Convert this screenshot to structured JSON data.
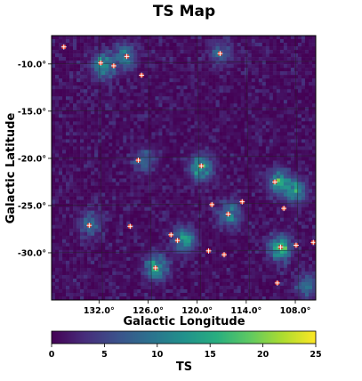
{
  "chart_data": {
    "type": "heatmap",
    "title": "TS Map",
    "xlabel": "Galactic Longitude",
    "ylabel": "Galactic Latitude",
    "x_ticks": [
      "132.0°",
      "126.0°",
      "120.0°",
      "114.0°",
      "108.0°"
    ],
    "x_tick_values": [
      132.0,
      126.0,
      120.0,
      114.0,
      108.0
    ],
    "y_ticks": [
      "-10.0°",
      "-15.0°",
      "-20.0°",
      "-25.0°",
      "-30.0°"
    ],
    "y_tick_values": [
      -10.0,
      -15.0,
      -20.0,
      -25.0,
      -30.0
    ],
    "xlim": [
      137.8,
      105.5
    ],
    "ylim": [
      -35.0,
      -7.0
    ],
    "grid": true,
    "colorbar": {
      "label": "TS",
      "range": [
        0,
        25
      ],
      "ticks": [
        "0",
        "5",
        "10",
        "15",
        "20",
        "25"
      ],
      "tick_values": [
        0,
        5,
        10,
        15,
        20,
        25
      ],
      "colormap": "viridis"
    },
    "sources": [
      {
        "l": 136.3,
        "b": -8.2
      },
      {
        "l": 131.8,
        "b": -9.9
      },
      {
        "l": 130.2,
        "b": -10.2
      },
      {
        "l": 128.6,
        "b": -9.2
      },
      {
        "l": 126.8,
        "b": -11.2
      },
      {
        "l": 117.2,
        "b": -8.9
      },
      {
        "l": 127.2,
        "b": -20.2
      },
      {
        "l": 119.5,
        "b": -20.8
      },
      {
        "l": 110.5,
        "b": -22.5
      },
      {
        "l": 118.2,
        "b": -24.9
      },
      {
        "l": 116.2,
        "b": -25.9
      },
      {
        "l": 114.5,
        "b": -24.6
      },
      {
        "l": 109.4,
        "b": -25.3
      },
      {
        "l": 133.2,
        "b": -27.1
      },
      {
        "l": 128.2,
        "b": -27.2
      },
      {
        "l": 123.2,
        "b": -28.1
      },
      {
        "l": 122.4,
        "b": -28.7
      },
      {
        "l": 118.6,
        "b": -29.8
      },
      {
        "l": 116.7,
        "b": -30.2
      },
      {
        "l": 125.1,
        "b": -31.6
      },
      {
        "l": 109.8,
        "b": -29.4
      },
      {
        "l": 107.9,
        "b": -29.2
      },
      {
        "l": 105.8,
        "b": -28.9
      },
      {
        "l": 110.2,
        "b": -33.2
      }
    ],
    "hot_spots": [
      {
        "l": 131.5,
        "b": -10.2,
        "ts": 15
      },
      {
        "l": 128.8,
        "b": -9.2,
        "ts": 11
      },
      {
        "l": 119.5,
        "b": -21.0,
        "ts": 16
      },
      {
        "l": 110.0,
        "b": -22.5,
        "ts": 15
      },
      {
        "l": 108.0,
        "b": -23.5,
        "ts": 13
      },
      {
        "l": 116.0,
        "b": -26.0,
        "ts": 12
      },
      {
        "l": 125.0,
        "b": -31.5,
        "ts": 16
      },
      {
        "l": 121.5,
        "b": -28.6,
        "ts": 14
      },
      {
        "l": 109.8,
        "b": -29.5,
        "ts": 18
      },
      {
        "l": 106.5,
        "b": -33.5,
        "ts": 10
      },
      {
        "l": 133.0,
        "b": -27.0,
        "ts": 9
      },
      {
        "l": 117.0,
        "b": -8.8,
        "ts": 8
      },
      {
        "l": 126.5,
        "b": -20.2,
        "ts": 7
      }
    ]
  }
}
